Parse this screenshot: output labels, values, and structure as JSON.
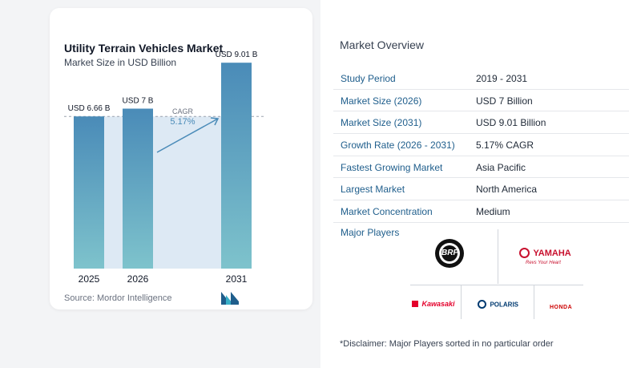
{
  "chart_data": {
    "type": "bar",
    "title": "Utility Terrain Vehicles Market",
    "subtitle": "Market Size in USD Billion",
    "categories": [
      "2025",
      "2026",
      "2031"
    ],
    "values": [
      6.66,
      7.0,
      9.01
    ],
    "value_labels": [
      "USD 6.66 B",
      "USD 7 B",
      "USD 9.01 B"
    ],
    "ylim": [
      0,
      10
    ],
    "cagr_label": "CAGR",
    "cagr_value": "5.17%",
    "colors": {
      "bar_top": "#4a8bb8",
      "bar_bottom": "#7ec3cc",
      "band": "#dde9f4",
      "arrow": "#4a8bb8"
    }
  },
  "source": "Source: Mordor Intelligence",
  "overview": {
    "title": "Market Overview",
    "rows": [
      {
        "label": "Study Period",
        "value": "2019 - 2031"
      },
      {
        "label": "Market Size (2026)",
        "value": "USD 7 Billion"
      },
      {
        "label": "Market Size (2031)",
        "value": "USD 9.01 Billion"
      },
      {
        "label": "Growth Rate (2026 - 2031)",
        "value": "5.17% CAGR"
      },
      {
        "label": "Fastest Growing Market",
        "value": "Asia Pacific"
      },
      {
        "label": "Largest Market",
        "value": "North America"
      },
      {
        "label": "Market Concentration",
        "value": "Medium"
      }
    ],
    "major_players_label": "Major Players",
    "players": {
      "brp": "BRP",
      "yamaha": "YAMAHA",
      "yamaha_tagline": "Revs Your Heart",
      "kawasaki": "Kawasaki",
      "polaris": "POLARIS",
      "honda": "HONDA"
    },
    "disclaimer": "*Disclaimer: Major Players sorted in no particular order"
  }
}
